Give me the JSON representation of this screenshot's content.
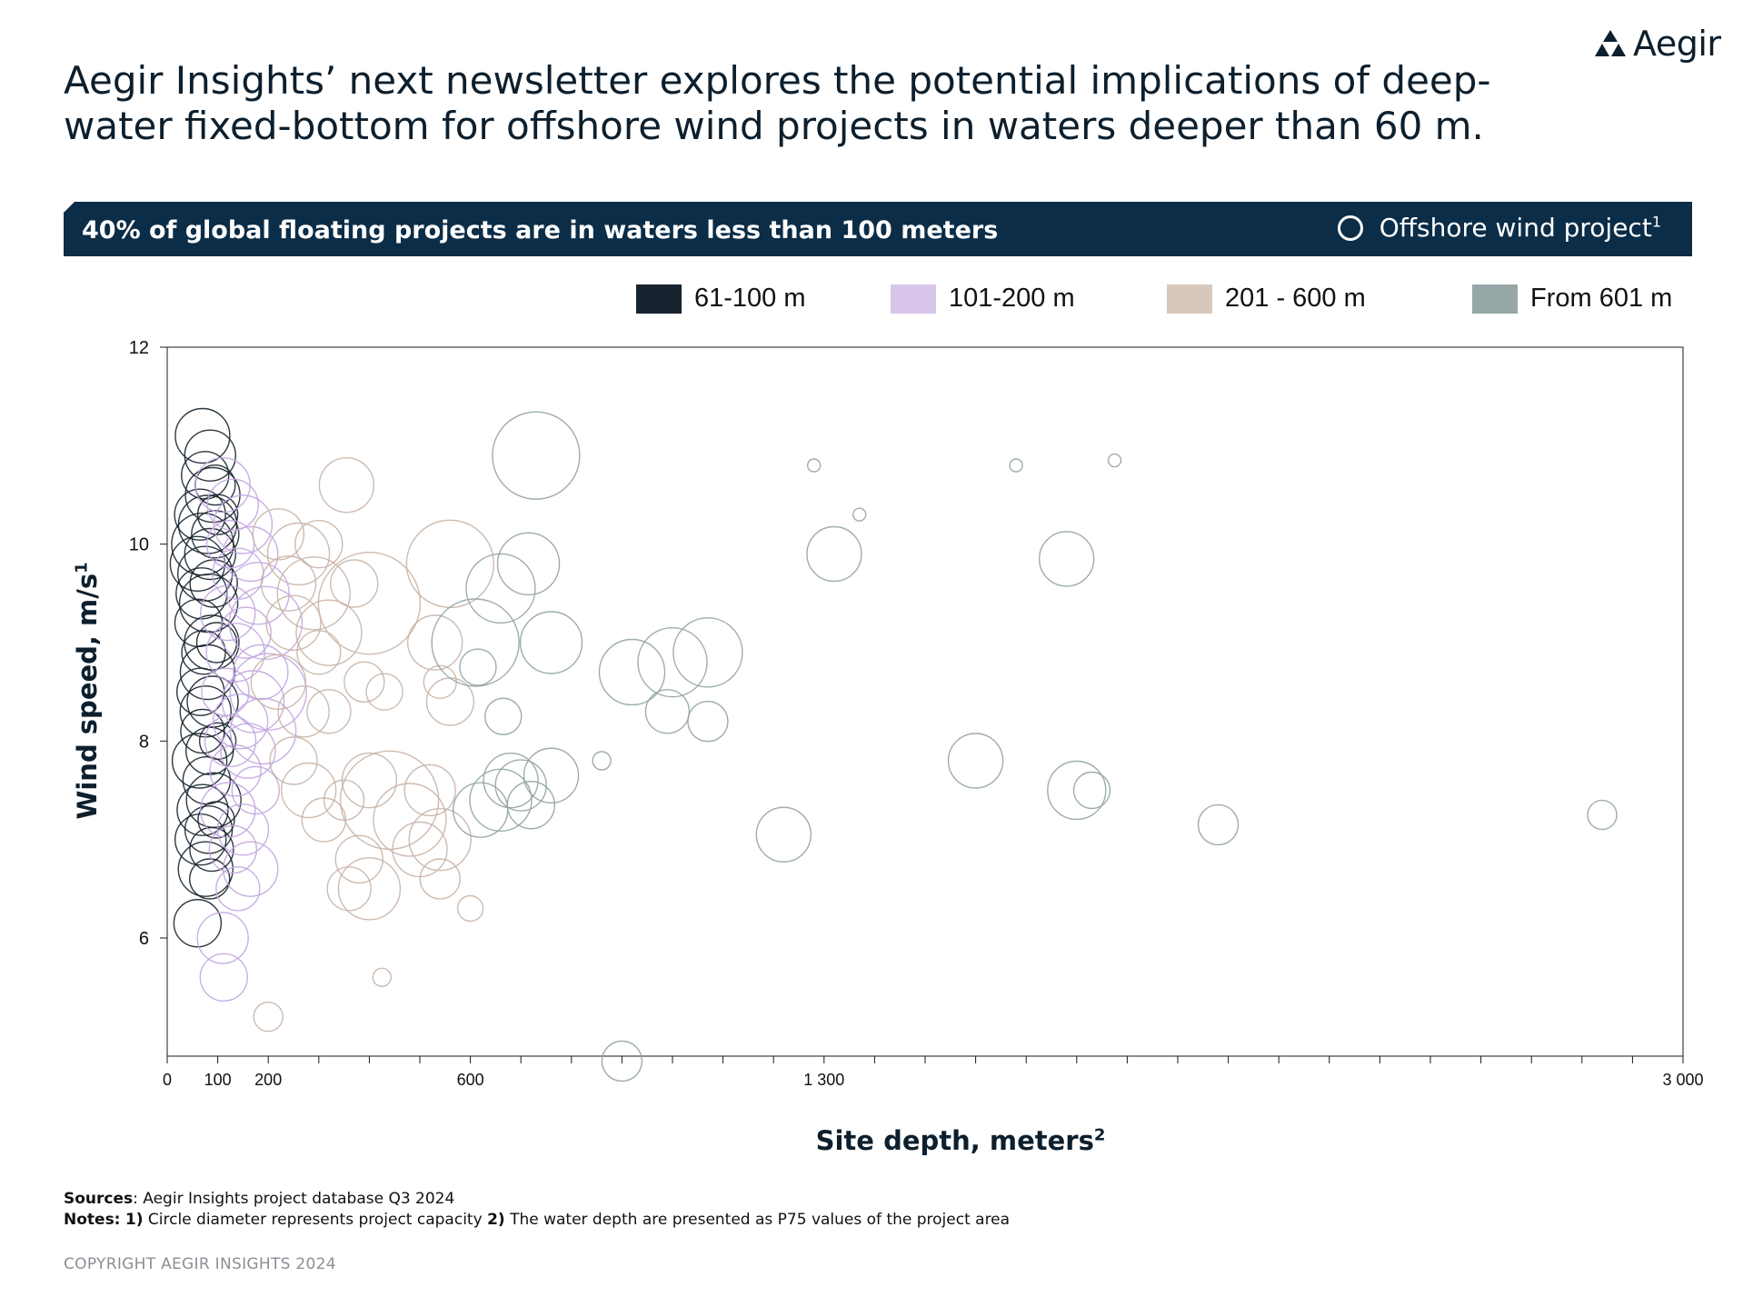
{
  "brand": {
    "name": "Aegir",
    "color": "#0d1f2d",
    "accent": "#0c2d47"
  },
  "headline": "Aegir Insights’ next newsletter explores the potential implications of deep-water fixed-bottom for offshore wind projects in waters deeper than 60 m.",
  "banner": {
    "text": "40% of global floating projects are in waters less than 100 meters",
    "legend_label": "Offshore wind project",
    "legend_sup": "1",
    "legend_icon": "ring-icon"
  },
  "legend": [
    {
      "label": "61-100 m",
      "color": "#17232e"
    },
    {
      "label": "101-200 m",
      "color": "#d7c6ea"
    },
    {
      "label": "201 - 600 m",
      "color": "#d8c8bc"
    },
    {
      "label": "From 601 m",
      "color": "#97a6a6"
    }
  ],
  "axes": {
    "ylabel": "Wind speed, m/s",
    "ylabel_sup": "1",
    "xlabel": "Site depth, meters",
    "xlabel_sup": "2"
  },
  "footer": {
    "sources_label": "Sources",
    "sources_text": ": Aegir Insights project database Q3 2024",
    "notes_label": "Notes:",
    "note1_label": "1)",
    "note1_text": " Circle diameter represents project capacity ",
    "note2_label": "2)",
    "note2_text": " The water depth are presented as P75 values of the project area",
    "copyright": "COPYRIGHT AEGIR INSIGHTS 2024"
  },
  "chart_data": {
    "type": "scatter",
    "xlabel": "Site depth, meters",
    "ylabel": "Wind speed, m/s",
    "xlim": [
      0,
      3000
    ],
    "ylim": [
      4.8,
      12
    ],
    "x_ticks": [
      0,
      100,
      200,
      600,
      1300,
      3000
    ],
    "x_tick_labels": [
      "0",
      "100",
      "200",
      "600",
      "1 300",
      "3 000"
    ],
    "y_ticks": [
      6,
      8,
      10,
      12
    ],
    "y_tick_labels": [
      "6",
      "8",
      "10",
      "12"
    ],
    "grid": false,
    "size_encoding": "Circle diameter represents project capacity",
    "series": [
      {
        "name": "61-100 m",
        "color": "#17232e",
        "points": [
          [
            70,
            11.1,
            30
          ],
          [
            85,
            10.9,
            28
          ],
          [
            75,
            10.7,
            26
          ],
          [
            90,
            10.5,
            30
          ],
          [
            65,
            10.3,
            28
          ],
          [
            80,
            10.2,
            32
          ],
          [
            95,
            10.1,
            26
          ],
          [
            70,
            10.0,
            34
          ],
          [
            85,
            9.9,
            28
          ],
          [
            60,
            9.8,
            30
          ],
          [
            75,
            9.7,
            30
          ],
          [
            92,
            9.6,
            26
          ],
          [
            68,
            9.5,
            28
          ],
          [
            82,
            9.4,
            32
          ],
          [
            62,
            9.2,
            26
          ],
          [
            88,
            9.0,
            30
          ],
          [
            72,
            8.9,
            24
          ],
          [
            80,
            8.7,
            30
          ],
          [
            66,
            8.5,
            26
          ],
          [
            90,
            8.4,
            28
          ],
          [
            76,
            8.3,
            28
          ],
          [
            70,
            8.1,
            24
          ],
          [
            84,
            7.9,
            26
          ],
          [
            64,
            7.8,
            30
          ],
          [
            78,
            7.6,
            26
          ],
          [
            92,
            7.4,
            30
          ],
          [
            70,
            7.3,
            28
          ],
          [
            82,
            7.1,
            26
          ],
          [
            66,
            7.0,
            28
          ],
          [
            88,
            6.9,
            24
          ],
          [
            76,
            6.7,
            30
          ],
          [
            84,
            6.6,
            22
          ],
          [
            60,
            6.15,
            26
          ],
          [
            95,
            10.6,
            22
          ],
          [
            100,
            10.3,
            22
          ],
          [
            98,
            9.0,
            22
          ],
          [
            100,
            8.0,
            20
          ],
          [
            97,
            7.2,
            20
          ]
        ]
      },
      {
        "name": "101-200 m",
        "color": "#c3a6e0",
        "points": [
          [
            110,
            10.6,
            30
          ],
          [
            130,
            10.4,
            28
          ],
          [
            150,
            10.2,
            32
          ],
          [
            125,
            10.0,
            26
          ],
          [
            165,
            9.9,
            30
          ],
          [
            140,
            9.7,
            28
          ],
          [
            180,
            9.5,
            34
          ],
          [
            120,
            9.3,
            30
          ],
          [
            155,
            9.1,
            28
          ],
          [
            135,
            8.9,
            32
          ],
          [
            185,
            8.7,
            30
          ],
          [
            115,
            8.5,
            26
          ],
          [
            170,
            8.4,
            34
          ],
          [
            145,
            8.2,
            30
          ],
          [
            125,
            8.0,
            28
          ],
          [
            190,
            8.1,
            36
          ],
          [
            160,
            7.9,
            30
          ],
          [
            135,
            7.7,
            28
          ],
          [
            175,
            7.5,
            26
          ],
          [
            120,
            7.3,
            30
          ],
          [
            150,
            7.1,
            28
          ],
          [
            130,
            6.9,
            26
          ],
          [
            165,
            6.7,
            30
          ],
          [
            140,
            6.5,
            24
          ],
          [
            110,
            6.0,
            28
          ],
          [
            112,
            5.6,
            26
          ],
          [
            195,
            9.2,
            40
          ],
          [
            200,
            8.5,
            42
          ]
        ]
      },
      {
        "name": "201 - 600 m",
        "color": "#c9b4a6",
        "points": [
          [
            220,
            10.1,
            28
          ],
          [
            260,
            9.9,
            34
          ],
          [
            300,
            10.0,
            26
          ],
          [
            355,
            10.6,
            30
          ],
          [
            240,
            9.6,
            30
          ],
          [
            290,
            9.5,
            40
          ],
          [
            370,
            9.6,
            26
          ],
          [
            250,
            9.2,
            30
          ],
          [
            320,
            9.1,
            36
          ],
          [
            400,
            9.4,
            56
          ],
          [
            560,
            9.8,
            48
          ],
          [
            530,
            9.0,
            30
          ],
          [
            300,
            8.9,
            24
          ],
          [
            390,
            8.6,
            22
          ],
          [
            430,
            8.5,
            20
          ],
          [
            540,
            8.6,
            18
          ],
          [
            560,
            8.4,
            26
          ],
          [
            220,
            8.6,
            30
          ],
          [
            270,
            8.3,
            28
          ],
          [
            320,
            8.3,
            24
          ],
          [
            250,
            7.8,
            26
          ],
          [
            280,
            7.5,
            30
          ],
          [
            310,
            7.2,
            24
          ],
          [
            350,
            7.4,
            22
          ],
          [
            400,
            7.6,
            30
          ],
          [
            440,
            7.4,
            54
          ],
          [
            480,
            7.2,
            40
          ],
          [
            520,
            7.5,
            28
          ],
          [
            540,
            7.0,
            34
          ],
          [
            380,
            6.8,
            26
          ],
          [
            400,
            6.5,
            34
          ],
          [
            360,
            6.5,
            24
          ],
          [
            500,
            6.9,
            30
          ],
          [
            540,
            6.6,
            22
          ],
          [
            600,
            6.3,
            14
          ],
          [
            425,
            5.6,
            10
          ],
          [
            200,
            5.2,
            16
          ]
        ]
      },
      {
        "name": "From 601 m",
        "color": "#93a4a4",
        "points": [
          [
            730,
            10.9,
            48
          ],
          [
            660,
            9.55,
            38
          ],
          [
            715,
            9.8,
            34
          ],
          [
            610,
            9.0,
            48
          ],
          [
            760,
            9.0,
            34
          ],
          [
            615,
            8.75,
            20
          ],
          [
            665,
            8.25,
            20
          ],
          [
            920,
            8.7,
            36
          ],
          [
            1000,
            8.8,
            38
          ],
          [
            1070,
            8.9,
            38
          ],
          [
            990,
            8.3,
            24
          ],
          [
            1070,
            8.2,
            22
          ],
          [
            860,
            7.8,
            10
          ],
          [
            680,
            7.6,
            30
          ],
          [
            620,
            7.3,
            30
          ],
          [
            660,
            7.4,
            34
          ],
          [
            700,
            7.55,
            28
          ],
          [
            720,
            7.35,
            26
          ],
          [
            760,
            7.65,
            30
          ],
          [
            1220,
            7.05,
            30
          ],
          [
            1320,
            9.9,
            30
          ],
          [
            1600,
            7.8,
            30
          ],
          [
            1780,
            9.85,
            30
          ],
          [
            1800,
            7.5,
            32
          ],
          [
            1830,
            7.5,
            20
          ],
          [
            2080,
            7.15,
            22
          ],
          [
            2840,
            7.25,
            16
          ],
          [
            1280,
            10.8,
            7
          ],
          [
            1370,
            10.3,
            7
          ],
          [
            1680,
            10.8,
            7
          ],
          [
            1875,
            10.85,
            7
          ],
          [
            900,
            4.75,
            22
          ]
        ]
      }
    ]
  }
}
